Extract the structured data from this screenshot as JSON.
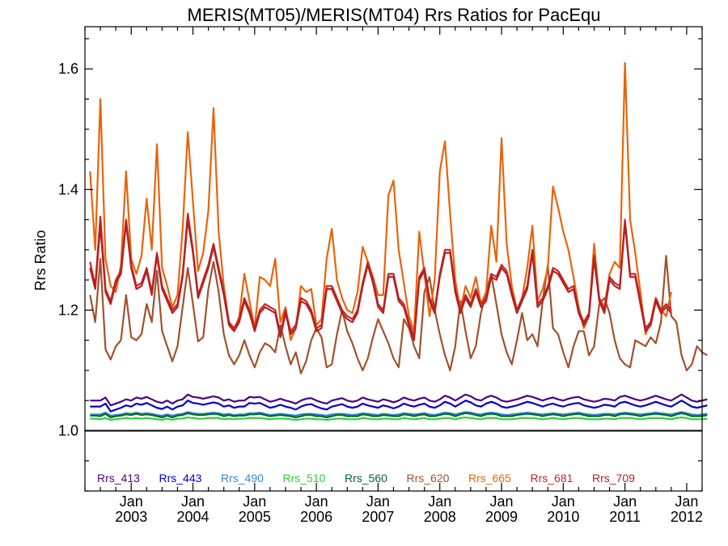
{
  "chart_data": {
    "type": "line",
    "title": "MERIS(MT05)/MERIS(MT04)  Rrs Ratios for PacEqu",
    "xlabel": "",
    "ylabel": "Rrs Ratio",
    "x_ticks": [
      {
        "month": "Jan",
        "year": "2003"
      },
      {
        "month": "Jan",
        "year": "2004"
      },
      {
        "month": "Jan",
        "year": "2005"
      },
      {
        "month": "Jan",
        "year": "2006"
      },
      {
        "month": "Jan",
        "year": "2007"
      },
      {
        "month": "Jan",
        "year": "2008"
      },
      {
        "month": "Jan",
        "year": "2009"
      },
      {
        "month": "Jan",
        "year": "2010"
      },
      {
        "month": "Jan",
        "year": "2011"
      },
      {
        "month": "Jan",
        "year": "2012"
      }
    ],
    "y_ticks": [
      "1.0",
      "1.2",
      "1.4",
      "1.6"
    ],
    "ylim": [
      0.9,
      1.67
    ],
    "xlim": [
      "2002-04",
      "2012-04"
    ],
    "reference_line": 1.0,
    "legend_position": "bottom",
    "x_start": "2002-05",
    "series": [
      {
        "name": "Rrs_413",
        "color": "#4b0082",
        "values": [
          1.05,
          1.05,
          1.05,
          1.055,
          1.042,
          1.045,
          1.048,
          1.052,
          1.05,
          1.055,
          1.053,
          1.056,
          1.052,
          1.048,
          1.046,
          1.05,
          1.045,
          1.05,
          1.052,
          1.06,
          1.056,
          1.055,
          1.053,
          1.055,
          1.057,
          1.055,
          1.05,
          1.052,
          1.048,
          1.05,
          1.05,
          1.056,
          1.055,
          1.056,
          1.052,
          1.048,
          1.05,
          1.053,
          1.05,
          1.048,
          1.045,
          1.05,
          1.053,
          1.054,
          1.05,
          1.047,
          1.045,
          1.05,
          1.052,
          1.054,
          1.05,
          1.048,
          1.05,
          1.055,
          1.052,
          1.05,
          1.048,
          1.052,
          1.05,
          1.047,
          1.05,
          1.055,
          1.052,
          1.05,
          1.053,
          1.055,
          1.05,
          1.048,
          1.052,
          1.058,
          1.055,
          1.05,
          1.055,
          1.06,
          1.057,
          1.052,
          1.05,
          1.055,
          1.058,
          1.055,
          1.05,
          1.048,
          1.05,
          1.052,
          1.055,
          1.058,
          1.056,
          1.053,
          1.05,
          1.053,
          1.055,
          1.052,
          1.05,
          1.053,
          1.055,
          1.056,
          1.052,
          1.05,
          1.048,
          1.05,
          1.053,
          1.052,
          1.05,
          1.056,
          1.058,
          1.055,
          1.052,
          1.05,
          1.052,
          1.055,
          1.058,
          1.055,
          1.052,
          1.05,
          1.055,
          1.06,
          1.055,
          1.05,
          1.048,
          1.05,
          1.052
        ]
      },
      {
        "name": "Rrs_443",
        "color": "#0000cc",
        "values": [
          1.04,
          1.04,
          1.04,
          1.045,
          1.032,
          1.035,
          1.038,
          1.042,
          1.04,
          1.045,
          1.043,
          1.046,
          1.042,
          1.038,
          1.036,
          1.04,
          1.035,
          1.04,
          1.042,
          1.05,
          1.046,
          1.045,
          1.043,
          1.045,
          1.047,
          1.045,
          1.04,
          1.042,
          1.038,
          1.04,
          1.04,
          1.046,
          1.045,
          1.046,
          1.042,
          1.038,
          1.04,
          1.043,
          1.04,
          1.038,
          1.035,
          1.04,
          1.043,
          1.044,
          1.04,
          1.037,
          1.035,
          1.04,
          1.042,
          1.044,
          1.04,
          1.038,
          1.04,
          1.045,
          1.042,
          1.04,
          1.038,
          1.042,
          1.04,
          1.037,
          1.04,
          1.045,
          1.042,
          1.04,
          1.043,
          1.045,
          1.04,
          1.038,
          1.042,
          1.048,
          1.045,
          1.04,
          1.045,
          1.05,
          1.047,
          1.042,
          1.04,
          1.045,
          1.048,
          1.045,
          1.04,
          1.038,
          1.04,
          1.042,
          1.045,
          1.048,
          1.046,
          1.043,
          1.04,
          1.043,
          1.045,
          1.042,
          1.04,
          1.043,
          1.045,
          1.046,
          1.042,
          1.04,
          1.038,
          1.04,
          1.043,
          1.042,
          1.04,
          1.046,
          1.048,
          1.045,
          1.042,
          1.04,
          1.042,
          1.045,
          1.048,
          1.045,
          1.042,
          1.04,
          1.045,
          1.05,
          1.045,
          1.04,
          1.038,
          1.04,
          1.042
        ]
      },
      {
        "name": "Rrs_490",
        "color": "#3388cc",
        "values": [
          1.027,
          1.027,
          1.027,
          1.03,
          1.025,
          1.026,
          1.027,
          1.029,
          1.028,
          1.03,
          1.028,
          1.029,
          1.028,
          1.026,
          1.025,
          1.027,
          1.025,
          1.027,
          1.028,
          1.031,
          1.029,
          1.028,
          1.028,
          1.029,
          1.03,
          1.029,
          1.027,
          1.028,
          1.026,
          1.027,
          1.027,
          1.029,
          1.029,
          1.03,
          1.028,
          1.026,
          1.027,
          1.028,
          1.027,
          1.026,
          1.025,
          1.027,
          1.028,
          1.028,
          1.027,
          1.026,
          1.025,
          1.027,
          1.028,
          1.028,
          1.027,
          1.026,
          1.027,
          1.029,
          1.028,
          1.027,
          1.026,
          1.028,
          1.027,
          1.026,
          1.027,
          1.029,
          1.028,
          1.027,
          1.028,
          1.029,
          1.027,
          1.026,
          1.028,
          1.03,
          1.029,
          1.027,
          1.029,
          1.031,
          1.03,
          1.028,
          1.027,
          1.029,
          1.03,
          1.029,
          1.027,
          1.026,
          1.027,
          1.028,
          1.029,
          1.03,
          1.029,
          1.028,
          1.027,
          1.028,
          1.029,
          1.028,
          1.027,
          1.028,
          1.029,
          1.03,
          1.028,
          1.027,
          1.026,
          1.027,
          1.028,
          1.028,
          1.027,
          1.029,
          1.03,
          1.029,
          1.028,
          1.027,
          1.028,
          1.029,
          1.03,
          1.029,
          1.028,
          1.027,
          1.029,
          1.031,
          1.029,
          1.027,
          1.026,
          1.027,
          1.028
        ]
      },
      {
        "name": "Rrs_510",
        "color": "#33cc33",
        "values": [
          1.02,
          1.02,
          1.019,
          1.021,
          1.018,
          1.019,
          1.02,
          1.021,
          1.02,
          1.021,
          1.02,
          1.021,
          1.02,
          1.019,
          1.018,
          1.02,
          1.018,
          1.02,
          1.02,
          1.022,
          1.021,
          1.02,
          1.02,
          1.021,
          1.021,
          1.021,
          1.019,
          1.02,
          1.019,
          1.02,
          1.02,
          1.021,
          1.021,
          1.021,
          1.02,
          1.019,
          1.02,
          1.02,
          1.02,
          1.019,
          1.018,
          1.019,
          1.02,
          1.02,
          1.019,
          1.019,
          1.018,
          1.019,
          1.02,
          1.02,
          1.019,
          1.019,
          1.019,
          1.021,
          1.02,
          1.019,
          1.019,
          1.02,
          1.02,
          1.019,
          1.019,
          1.021,
          1.02,
          1.019,
          1.02,
          1.021,
          1.019,
          1.019,
          1.02,
          1.021,
          1.021,
          1.019,
          1.021,
          1.022,
          1.021,
          1.02,
          1.019,
          1.021,
          1.021,
          1.021,
          1.019,
          1.019,
          1.019,
          1.02,
          1.021,
          1.021,
          1.021,
          1.02,
          1.019,
          1.02,
          1.021,
          1.02,
          1.019,
          1.02,
          1.021,
          1.021,
          1.02,
          1.019,
          1.019,
          1.019,
          1.02,
          1.02,
          1.019,
          1.021,
          1.021,
          1.021,
          1.02,
          1.019,
          1.02,
          1.021,
          1.021,
          1.021,
          1.02,
          1.019,
          1.021,
          1.022,
          1.021,
          1.019,
          1.019,
          1.019,
          1.02
        ]
      },
      {
        "name": "Rrs_560",
        "color": "#006633",
        "values": [
          1.025,
          1.025,
          1.024,
          1.028,
          1.022,
          1.024,
          1.025,
          1.027,
          1.026,
          1.028,
          1.026,
          1.027,
          1.026,
          1.024,
          1.022,
          1.025,
          1.022,
          1.025,
          1.026,
          1.029,
          1.027,
          1.026,
          1.026,
          1.027,
          1.028,
          1.027,
          1.024,
          1.026,
          1.024,
          1.025,
          1.025,
          1.027,
          1.027,
          1.028,
          1.026,
          1.024,
          1.025,
          1.026,
          1.025,
          1.024,
          1.022,
          1.024,
          1.026,
          1.026,
          1.024,
          1.024,
          1.022,
          1.024,
          1.026,
          1.026,
          1.024,
          1.024,
          1.024,
          1.027,
          1.026,
          1.024,
          1.024,
          1.026,
          1.025,
          1.024,
          1.024,
          1.027,
          1.026,
          1.024,
          1.026,
          1.027,
          1.024,
          1.024,
          1.026,
          1.028,
          1.027,
          1.024,
          1.027,
          1.029,
          1.028,
          1.026,
          1.024,
          1.027,
          1.028,
          1.027,
          1.024,
          1.024,
          1.024,
          1.026,
          1.027,
          1.028,
          1.027,
          1.026,
          1.024,
          1.026,
          1.027,
          1.026,
          1.024,
          1.026,
          1.027,
          1.028,
          1.026,
          1.024,
          1.024,
          1.024,
          1.026,
          1.026,
          1.024,
          1.027,
          1.028,
          1.027,
          1.026,
          1.024,
          1.026,
          1.027,
          1.028,
          1.027,
          1.026,
          1.024,
          1.027,
          1.029,
          1.027,
          1.024,
          1.024,
          1.024,
          1.026
        ]
      },
      {
        "name": "Rrs_620",
        "color": "#a0522d",
        "values": [
          1.225,
          1.18,
          1.285,
          1.135,
          1.118,
          1.14,
          1.15,
          1.225,
          1.155,
          1.15,
          1.16,
          1.21,
          1.18,
          1.265,
          1.165,
          1.14,
          1.115,
          1.14,
          1.205,
          1.27,
          1.21,
          1.148,
          1.155,
          1.235,
          1.28,
          1.23,
          1.16,
          1.125,
          1.11,
          1.125,
          1.15,
          1.125,
          1.105,
          1.13,
          1.145,
          1.14,
          1.13,
          1.175,
          1.14,
          1.11,
          1.13,
          1.095,
          1.115,
          1.15,
          1.17,
          1.155,
          1.105,
          1.11,
          1.16,
          1.2,
          1.165,
          1.145,
          1.12,
          1.1,
          1.12,
          1.155,
          1.185,
          1.165,
          1.145,
          1.12,
          1.105,
          1.185,
          1.17,
          1.14,
          1.12,
          1.23,
          1.255,
          1.2,
          1.16,
          1.125,
          1.1,
          1.14,
          1.215,
          1.165,
          1.12,
          1.14,
          1.195,
          1.23,
          1.26,
          1.21,
          1.16,
          1.13,
          1.11,
          1.15,
          1.195,
          1.15,
          1.16,
          1.14,
          1.215,
          1.275,
          1.17,
          1.16,
          1.13,
          1.105,
          1.14,
          1.165,
          1.165,
          1.125,
          1.14,
          1.21,
          1.22,
          1.195,
          1.15,
          1.12,
          1.11,
          1.105,
          1.15,
          1.145,
          1.14,
          1.155,
          1.145,
          1.18,
          1.29,
          1.19,
          1.18,
          1.125,
          1.1,
          1.11,
          1.14,
          1.13,
          1.125
        ]
      },
      {
        "name": "Rrs_665",
        "color": "#e8640a",
        "values": [
          1.43,
          1.3,
          1.55,
          1.285,
          1.24,
          1.23,
          1.275,
          1.43,
          1.285,
          1.26,
          1.29,
          1.385,
          1.3,
          1.475,
          1.27,
          1.24,
          1.205,
          1.225,
          1.335,
          1.495,
          1.38,
          1.265,
          1.295,
          1.365,
          1.535,
          1.33,
          1.24,
          1.18,
          1.165,
          1.19,
          1.26,
          1.215,
          1.17,
          1.255,
          1.25,
          1.24,
          1.285,
          1.18,
          1.205,
          1.15,
          1.17,
          1.24,
          1.23,
          1.235,
          1.175,
          1.185,
          1.285,
          1.335,
          1.25,
          1.22,
          1.2,
          1.195,
          1.23,
          1.305,
          1.28,
          1.255,
          1.225,
          1.225,
          1.39,
          1.415,
          1.3,
          1.245,
          1.19,
          1.165,
          1.33,
          1.26,
          1.19,
          1.25,
          1.43,
          1.48,
          1.36,
          1.25,
          1.2,
          1.24,
          1.22,
          1.255,
          1.21,
          1.23,
          1.34,
          1.28,
          1.485,
          1.31,
          1.24,
          1.2,
          1.22,
          1.27,
          1.34,
          1.215,
          1.235,
          1.27,
          1.405,
          1.37,
          1.33,
          1.3,
          1.255,
          1.205,
          1.17,
          1.19,
          1.31,
          1.22,
          1.205,
          1.26,
          1.28,
          1.27,
          1.61,
          1.35,
          1.295,
          1.23,
          1.16,
          1.18,
          1.22,
          1.2,
          1.19,
          1.23
        ]
      },
      {
        "name": "Rrs_681",
        "color": "#cc2222",
        "values": [
          1.28,
          1.24,
          1.355,
          1.235,
          1.215,
          1.25,
          1.265,
          1.35,
          1.275,
          1.24,
          1.245,
          1.27,
          1.23,
          1.295,
          1.24,
          1.22,
          1.2,
          1.21,
          1.26,
          1.36,
          1.3,
          1.225,
          1.25,
          1.275,
          1.31,
          1.27,
          1.23,
          1.18,
          1.17,
          1.185,
          1.22,
          1.2,
          1.17,
          1.2,
          1.21,
          1.205,
          1.2,
          1.16,
          1.2,
          1.165,
          1.175,
          1.22,
          1.215,
          1.2,
          1.17,
          1.175,
          1.24,
          1.24,
          1.22,
          1.2,
          1.19,
          1.185,
          1.2,
          1.245,
          1.28,
          1.25,
          1.21,
          1.2,
          1.26,
          1.26,
          1.22,
          1.21,
          1.18,
          1.155,
          1.255,
          1.27,
          1.22,
          1.2,
          1.26,
          1.3,
          1.3,
          1.235,
          1.2,
          1.225,
          1.21,
          1.235,
          1.21,
          1.22,
          1.26,
          1.255,
          1.275,
          1.265,
          1.23,
          1.2,
          1.22,
          1.24,
          1.3,
          1.21,
          1.22,
          1.24,
          1.27,
          1.265,
          1.25,
          1.235,
          1.24,
          1.2,
          1.18,
          1.195,
          1.29,
          1.22,
          1.2,
          1.255,
          1.245,
          1.24,
          1.35,
          1.26,
          1.26,
          1.215,
          1.17,
          1.18,
          1.22,
          1.2,
          1.21,
          1.2
        ]
      },
      {
        "name": "Rrs_709",
        "color": "#b22222",
        "values": [
          1.27,
          1.235,
          1.34,
          1.23,
          1.21,
          1.245,
          1.26,
          1.345,
          1.27,
          1.235,
          1.24,
          1.265,
          1.225,
          1.29,
          1.235,
          1.215,
          1.195,
          1.205,
          1.255,
          1.35,
          1.295,
          1.22,
          1.245,
          1.27,
          1.305,
          1.265,
          1.225,
          1.175,
          1.165,
          1.18,
          1.215,
          1.195,
          1.165,
          1.195,
          1.205,
          1.2,
          1.195,
          1.155,
          1.195,
          1.16,
          1.17,
          1.215,
          1.21,
          1.195,
          1.165,
          1.17,
          1.235,
          1.235,
          1.215,
          1.195,
          1.185,
          1.18,
          1.195,
          1.24,
          1.275,
          1.245,
          1.205,
          1.195,
          1.255,
          1.255,
          1.215,
          1.205,
          1.175,
          1.15,
          1.25,
          1.265,
          1.215,
          1.195,
          1.255,
          1.295,
          1.295,
          1.23,
          1.195,
          1.22,
          1.205,
          1.23,
          1.205,
          1.215,
          1.255,
          1.25,
          1.27,
          1.26,
          1.225,
          1.195,
          1.215,
          1.235,
          1.295,
          1.205,
          1.215,
          1.235,
          1.265,
          1.26,
          1.245,
          1.23,
          1.235,
          1.195,
          1.175,
          1.19,
          1.285,
          1.215,
          1.195,
          1.25,
          1.24,
          1.235,
          1.345,
          1.255,
          1.255,
          1.21,
          1.165,
          1.175,
          1.215,
          1.195,
          1.205,
          1.195
        ]
      }
    ]
  }
}
